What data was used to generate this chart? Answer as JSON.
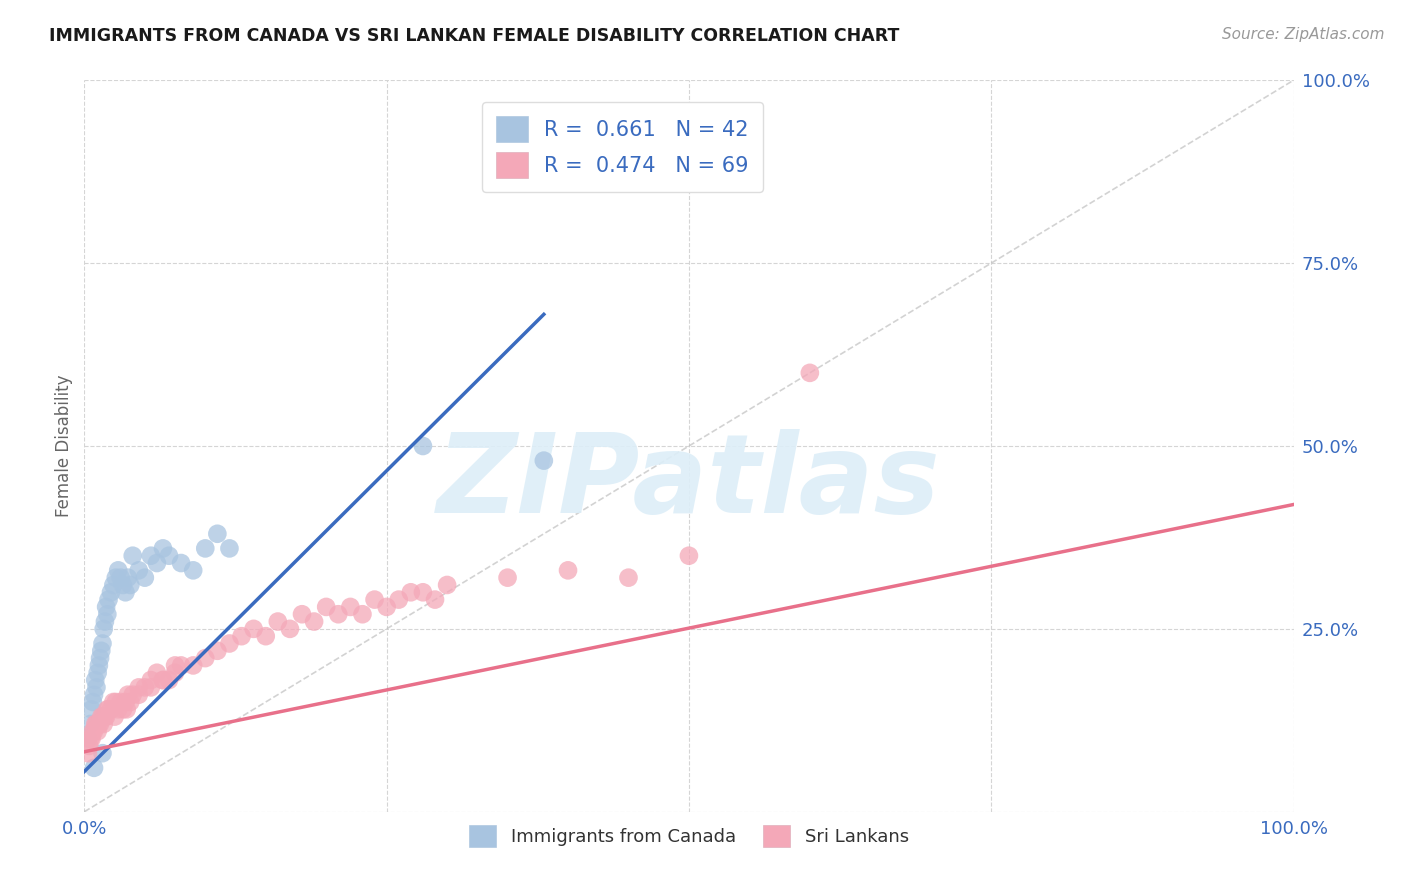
{
  "title": "IMMIGRANTS FROM CANADA VS SRI LANKAN FEMALE DISABILITY CORRELATION CHART",
  "source": "Source: ZipAtlas.com",
  "ylabel": "Female Disability",
  "watermark": "ZIPatlas",
  "blue_R": 0.661,
  "blue_N": 42,
  "pink_R": 0.474,
  "pink_N": 69,
  "blue_color": "#a8c4e0",
  "pink_color": "#f4a8b8",
  "blue_line_color": "#3a6bbf",
  "pink_line_color": "#e8708a",
  "diagonal_color": "#c0c0c0",
  "background_color": "#ffffff",
  "blue_points_x": [
    0.003,
    0.005,
    0.006,
    0.007,
    0.008,
    0.009,
    0.01,
    0.011,
    0.012,
    0.013,
    0.014,
    0.015,
    0.016,
    0.017,
    0.018,
    0.019,
    0.02,
    0.022,
    0.024,
    0.026,
    0.028,
    0.03,
    0.032,
    0.034,
    0.036,
    0.038,
    0.04,
    0.045,
    0.05,
    0.055,
    0.06,
    0.065,
    0.07,
    0.08,
    0.09,
    0.1,
    0.11,
    0.12,
    0.28,
    0.38,
    0.008,
    0.015
  ],
  "blue_points_y": [
    0.1,
    0.12,
    0.14,
    0.15,
    0.16,
    0.18,
    0.17,
    0.19,
    0.2,
    0.21,
    0.22,
    0.23,
    0.25,
    0.26,
    0.28,
    0.27,
    0.29,
    0.3,
    0.31,
    0.32,
    0.33,
    0.32,
    0.31,
    0.3,
    0.32,
    0.31,
    0.35,
    0.33,
    0.32,
    0.35,
    0.34,
    0.36,
    0.35,
    0.34,
    0.33,
    0.36,
    0.38,
    0.36,
    0.5,
    0.48,
    0.06,
    0.08
  ],
  "pink_points_x": [
    0.003,
    0.004,
    0.005,
    0.006,
    0.007,
    0.008,
    0.009,
    0.01,
    0.011,
    0.012,
    0.013,
    0.014,
    0.015,
    0.016,
    0.017,
    0.018,
    0.019,
    0.02,
    0.022,
    0.024,
    0.026,
    0.028,
    0.03,
    0.032,
    0.034,
    0.036,
    0.038,
    0.04,
    0.045,
    0.05,
    0.055,
    0.06,
    0.065,
    0.07,
    0.075,
    0.08,
    0.09,
    0.1,
    0.11,
    0.12,
    0.13,
    0.14,
    0.15,
    0.16,
    0.17,
    0.18,
    0.19,
    0.2,
    0.21,
    0.22,
    0.23,
    0.24,
    0.25,
    0.26,
    0.27,
    0.28,
    0.29,
    0.3,
    0.35,
    0.4,
    0.45,
    0.5,
    0.025,
    0.035,
    0.045,
    0.055,
    0.065,
    0.075,
    0.6
  ],
  "pink_points_y": [
    0.08,
    0.09,
    0.1,
    0.1,
    0.11,
    0.11,
    0.12,
    0.12,
    0.11,
    0.12,
    0.12,
    0.13,
    0.13,
    0.12,
    0.13,
    0.13,
    0.14,
    0.14,
    0.14,
    0.15,
    0.15,
    0.14,
    0.15,
    0.14,
    0.15,
    0.16,
    0.15,
    0.16,
    0.17,
    0.17,
    0.18,
    0.19,
    0.18,
    0.18,
    0.19,
    0.2,
    0.2,
    0.21,
    0.22,
    0.23,
    0.24,
    0.25,
    0.24,
    0.26,
    0.25,
    0.27,
    0.26,
    0.28,
    0.27,
    0.28,
    0.27,
    0.29,
    0.28,
    0.29,
    0.3,
    0.3,
    0.29,
    0.31,
    0.32,
    0.33,
    0.32,
    0.35,
    0.13,
    0.14,
    0.16,
    0.17,
    0.18,
    0.2,
    0.6
  ],
  "blue_line_x0": 0.0,
  "blue_line_y0": 0.055,
  "blue_line_x1": 0.38,
  "blue_line_y1": 0.68,
  "pink_line_x0": 0.0,
  "pink_line_y0": 0.082,
  "pink_line_x1": 1.0,
  "pink_line_y1": 0.42,
  "xlim": [
    0.0,
    1.0
  ],
  "ylim": [
    0.0,
    1.0
  ],
  "xticks": [
    0.0,
    0.25,
    0.5,
    0.75,
    1.0
  ],
  "xticklabels_show": [
    "0.0%",
    "100.0%"
  ],
  "xticklabels_pos": [
    0.0,
    1.0
  ],
  "yticks": [
    0.0,
    0.25,
    0.5,
    0.75,
    1.0
  ],
  "yticklabels": [
    "",
    "25.0%",
    "50.0%",
    "75.0%",
    "100.0%"
  ],
  "grid_color": "#d5d5d5",
  "legend_blue_label": "R =  0.661   N = 42",
  "legend_pink_label": "R =  0.474   N = 69",
  "bottom_legend_blue": "Immigrants from Canada",
  "bottom_legend_pink": "Sri Lankans"
}
